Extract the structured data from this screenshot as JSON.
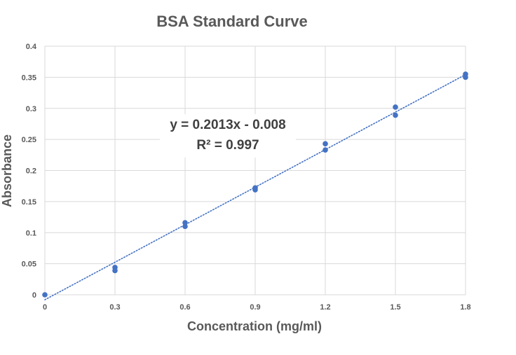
{
  "chart_data": {
    "type": "scatter",
    "title": "BSA Standard Curve",
    "xlabel": "Concentration (mg/ml)",
    "ylabel": "Absorbance",
    "xlim": [
      0,
      1.8
    ],
    "ylim": [
      0,
      0.4
    ],
    "x_ticks": [
      "0",
      "0.3",
      "0.6",
      "0.9",
      "1.2",
      "1.5",
      "1.8"
    ],
    "y_ticks": [
      "0",
      "0.05",
      "0.1",
      "0.15",
      "0.2",
      "0.25",
      "0.3",
      "0.35",
      "0.4"
    ],
    "grid": true,
    "series": [
      {
        "color": "#4472c4",
        "points": [
          {
            "x": 0,
            "y": 0
          },
          {
            "x": 0.3,
            "y": 0.044
          },
          {
            "x": 0.3,
            "y": 0.039
          },
          {
            "x": 0.6,
            "y": 0.116
          },
          {
            "x": 0.6,
            "y": 0.11
          },
          {
            "x": 0.9,
            "y": 0.172
          },
          {
            "x": 0.9,
            "y": 0.169
          },
          {
            "x": 1.2,
            "y": 0.243
          },
          {
            "x": 1.2,
            "y": 0.233
          },
          {
            "x": 1.5,
            "y": 0.302
          },
          {
            "x": 1.5,
            "y": 0.289
          },
          {
            "x": 1.8,
            "y": 0.355
          },
          {
            "x": 1.8,
            "y": 0.35
          }
        ]
      }
    ],
    "trendline": {
      "type": "linear",
      "style": "dotted",
      "color": "#4472c4",
      "slope": 0.2013,
      "intercept": -0.008,
      "equation": "y = 0.2013x - 0.008",
      "r_squared": "R² = 0.997"
    }
  }
}
